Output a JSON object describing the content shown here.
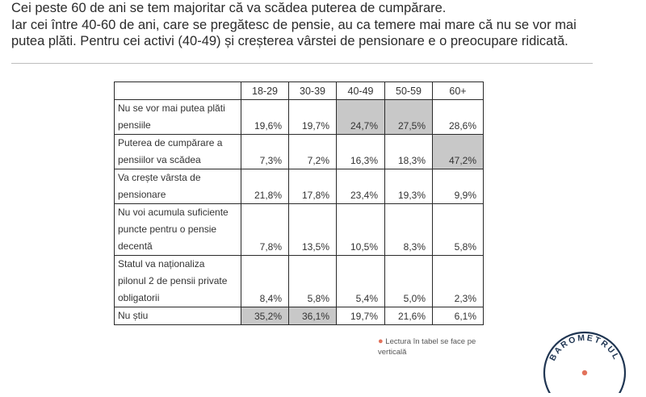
{
  "intro": {
    "line1": "Cei peste 60 de ani se tem majoritar că va scădea puterea de cumpărare.",
    "line2": "Iar cei între 40-60 de ani, care se pregătesc de pensie, au ca temere mai mare că nu se vor mai",
    "line3": "putea plăti. Pentru cei activi (40-49) și creșterea vârstei de pensionare e o preocupare ridicată."
  },
  "table": {
    "headers": [
      "18-29",
      "30-39",
      "40-49",
      "50-59",
      "60+"
    ],
    "rows": [
      {
        "label_lines": [
          "Nu se vor mai putea plăti",
          "pensiile"
        ],
        "values": [
          "19,6%",
          "19,7%",
          "24,7%",
          "27,5%",
          "28,6%"
        ],
        "highlight": [
          false,
          false,
          true,
          true,
          false
        ]
      },
      {
        "label_lines": [
          "Puterea de cumpărare a",
          "pensiilor va scădea"
        ],
        "values": [
          "7,3%",
          "7,2%",
          "16,3%",
          "18,3%",
          "47,2%"
        ],
        "highlight": [
          false,
          false,
          false,
          false,
          true
        ]
      },
      {
        "label_lines": [
          "Va crește vârsta de",
          "pensionare"
        ],
        "values": [
          "21,8%",
          "17,8%",
          "23,4%",
          "19,3%",
          "9,9%"
        ],
        "highlight": [
          false,
          false,
          false,
          false,
          false
        ]
      },
      {
        "label_lines": [
          "Nu voi acumula suficiente",
          "puncte pentru o pensie",
          "decentă"
        ],
        "values": [
          "7,8%",
          "13,5%",
          "10,5%",
          "8,3%",
          "5,8%"
        ],
        "highlight": [
          false,
          false,
          false,
          false,
          false
        ]
      },
      {
        "label_lines": [
          "Statul va naționaliza",
          "pilonul 2 de pensii private",
          "obligatorii"
        ],
        "values": [
          "8,4%",
          "5,8%",
          "5,4%",
          "5,0%",
          "2,3%"
        ],
        "highlight": [
          false,
          false,
          false,
          false,
          false
        ]
      },
      {
        "label_lines": [
          "Nu știu"
        ],
        "values": [
          "35,2%",
          "36,1%",
          "19,7%",
          "21,6%",
          "6,1%"
        ],
        "highlight": [
          true,
          true,
          false,
          false,
          false
        ]
      }
    ]
  },
  "note": {
    "line1": "Lectura în tabel se face pe",
    "line2": "verticală"
  },
  "logo_text": "BAROMETRUL",
  "colors": {
    "highlight": "#c8c8c8",
    "accent": "#e2725b",
    "seal": "#1f3552"
  }
}
